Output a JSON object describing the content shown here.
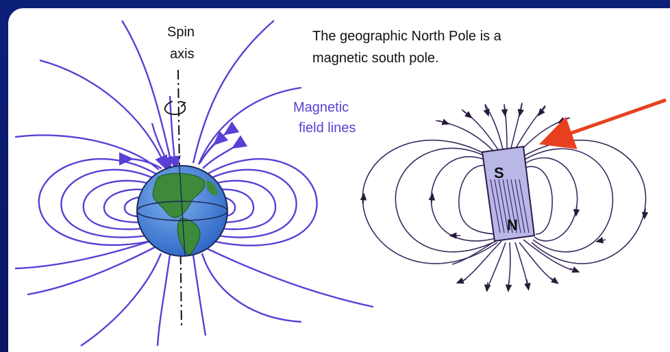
{
  "labels": {
    "spin_line1": "Spin",
    "spin_line2": "axis",
    "caption_line1": "The geographic North Pole is a",
    "caption_line2": "magnetic south pole.",
    "field_line1": "Magnetic",
    "field_line2": "field lines",
    "pole_s": "S",
    "pole_n": "N"
  },
  "colors": {
    "frame": "#0a1a6b",
    "field_lines": "#5a3fd6",
    "ocean": "#3f7fd8",
    "land": "#3c8a3a",
    "magnet_lines": "#4a2f7a",
    "pointer_arrow": "#e8401e"
  }
}
